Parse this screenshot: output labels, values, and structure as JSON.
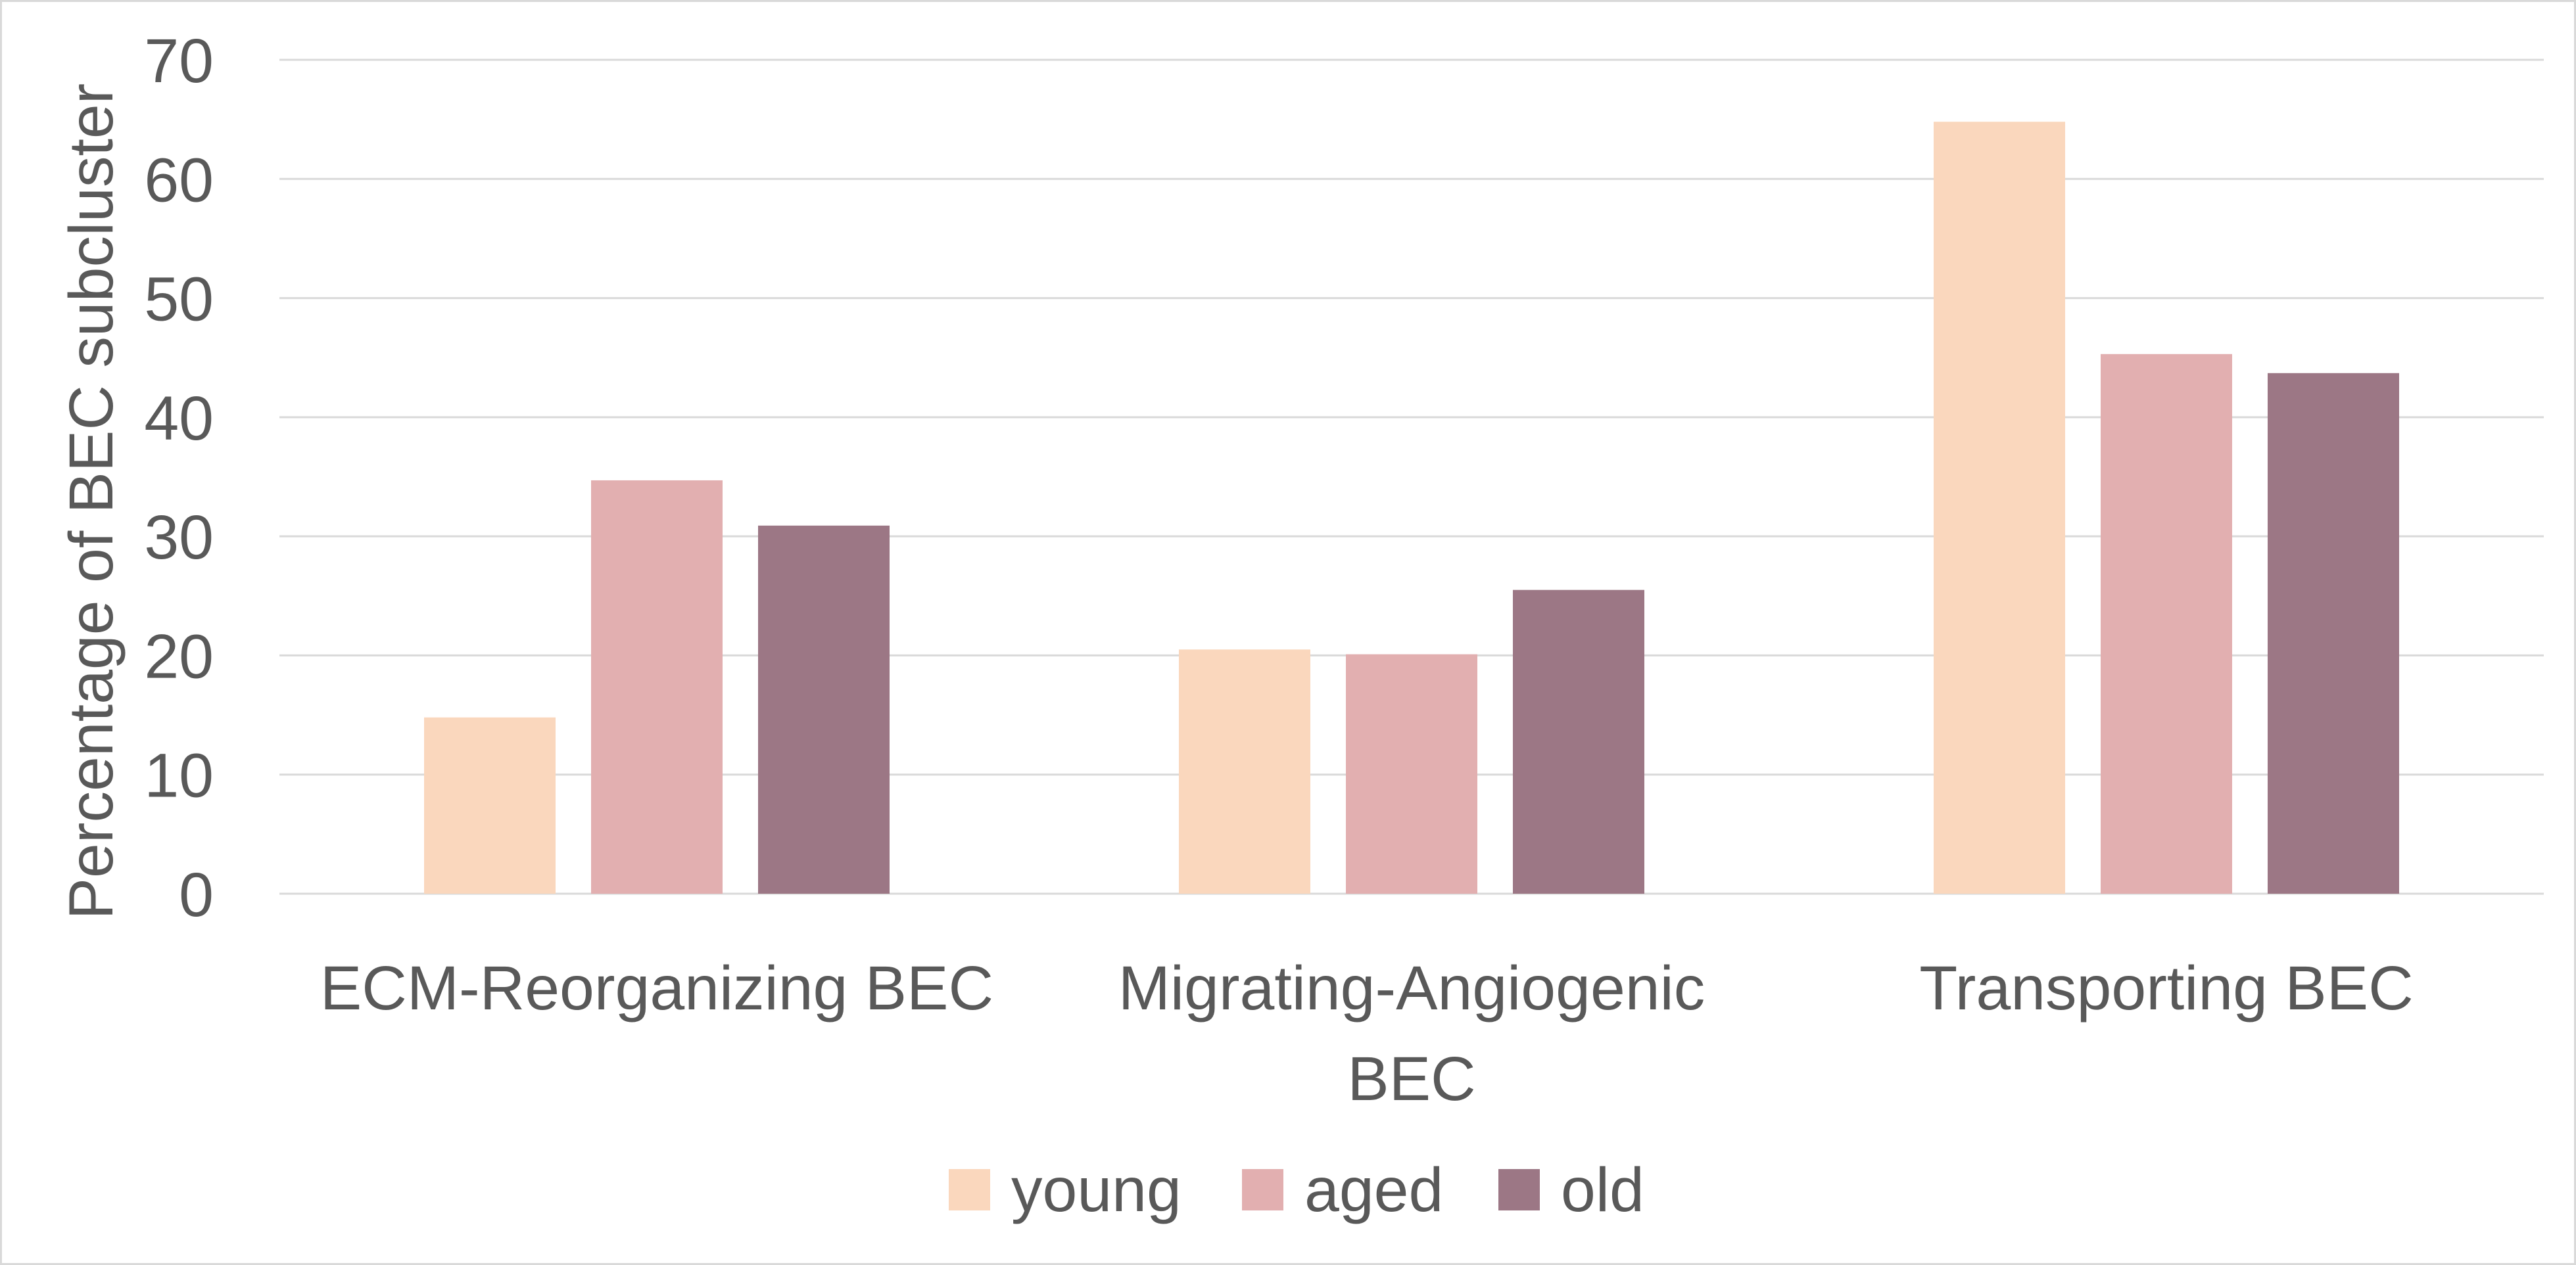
{
  "chart_data": {
    "type": "bar",
    "categories": [
      [
        "ECM-Reorganizing BEC"
      ],
      [
        "Migrating-Angiogenic",
        "BEC"
      ],
      [
        "Transporting BEC"
      ]
    ],
    "series": [
      {
        "name": "young",
        "color": "#fad7bd",
        "values": [
          14.8,
          20.5,
          64.8
        ]
      },
      {
        "name": "aged",
        "color": "#e2afb0",
        "values": [
          34.7,
          20.1,
          45.3
        ]
      },
      {
        "name": "old",
        "color": "#9c7785",
        "values": [
          30.9,
          25.5,
          43.7
        ]
      }
    ],
    "ylabel": "Percentage of BEC subcluster",
    "ylim": [
      0,
      70
    ],
    "yticks": [
      0,
      10,
      20,
      30,
      40,
      50,
      60,
      70
    ],
    "grid": true,
    "legend_position": "bottom"
  }
}
